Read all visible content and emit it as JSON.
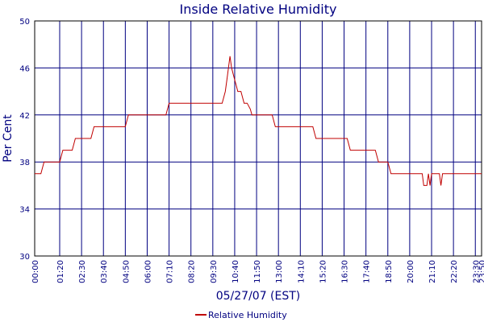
{
  "chart_data": {
    "type": "line",
    "title": "Inside Relative Humidity",
    "xlabel": "05/27/07 (EST)",
    "ylabel": "Per Cent",
    "ylim": [
      30,
      50
    ],
    "yticks": [
      30,
      34,
      38,
      42,
      46,
      50
    ],
    "xlim": [
      "00:00",
      "23:50"
    ],
    "xticks": [
      "00:00",
      "01:20",
      "02:30",
      "03:40",
      "04:50",
      "06:00",
      "07:10",
      "08:20",
      "09:30",
      "10:40",
      "11:50",
      "13:00",
      "14:10",
      "15:20",
      "16:30",
      "17:40",
      "18:50",
      "20:00",
      "21:10",
      "22:20",
      "23:30",
      "23:50"
    ],
    "grid": true,
    "legend_position": "bottom-center",
    "colors": {
      "series": "#c00000",
      "grid": "#000080",
      "frame": "#000000",
      "text": "#000080"
    },
    "series": [
      {
        "name": "Relative Humidity",
        "x": [
          "00:00",
          "00:20",
          "00:30",
          "01:20",
          "01:30",
          "02:00",
          "02:10",
          "03:00",
          "03:10",
          "04:50",
          "05:00",
          "07:00",
          "07:10",
          "09:40",
          "10:00",
          "10:10",
          "10:15",
          "10:20",
          "10:25",
          "10:30",
          "10:35",
          "10:40",
          "10:45",
          "10:50",
          "10:55",
          "11:00",
          "11:10",
          "11:20",
          "11:30",
          "11:35",
          "11:40",
          "11:50",
          "12:40",
          "12:50",
          "14:50",
          "15:00",
          "16:40",
          "16:50",
          "18:10",
          "18:20",
          "18:50",
          "19:00",
          "20:40",
          "20:45",
          "20:55",
          "21:00",
          "21:05",
          "21:10",
          "21:15",
          "21:20",
          "21:35",
          "21:40",
          "21:45",
          "21:55",
          "22:00",
          "23:50"
        ],
        "values": [
          37,
          37,
          38,
          38,
          39,
          39,
          40,
          40,
          41,
          41,
          42,
          42,
          43,
          43,
          43,
          44,
          45,
          46,
          47,
          46,
          45.5,
          45,
          44.5,
          44,
          44,
          44,
          43,
          43,
          42.5,
          42,
          42,
          42,
          42,
          41,
          41,
          40,
          40,
          39,
          39,
          38,
          38,
          37,
          37,
          36,
          36,
          37,
          36,
          37,
          37,
          37,
          37,
          36,
          37,
          37,
          37,
          37
        ]
      }
    ]
  }
}
